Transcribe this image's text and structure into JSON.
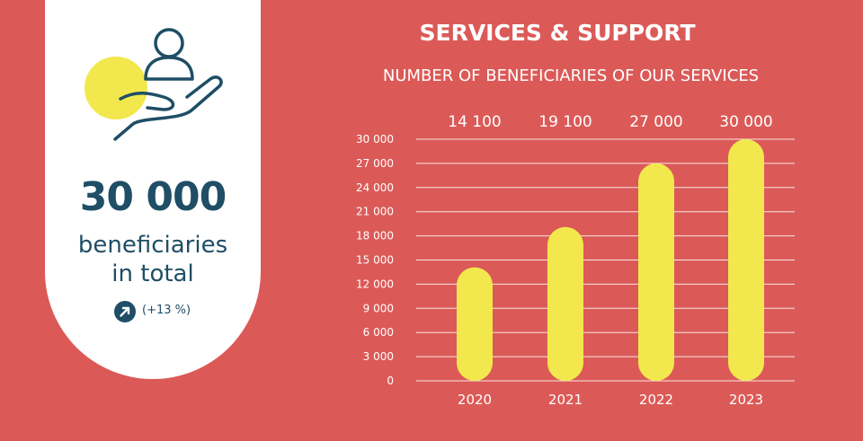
{
  "summary": {
    "value": "30 000",
    "line1": "beneficiaries",
    "line2": "in total",
    "growth": "(+13 %)",
    "icons": [
      "hand-person-icon",
      "arrow-up-right-icon"
    ]
  },
  "header": {
    "title": "SERVICES & SUPPORT"
  },
  "colors": {
    "background": "#db5a57",
    "bar": "#f2e84d",
    "card": "#ffffff",
    "text_dark": "#1f4e66"
  },
  "chart_data": {
    "type": "bar",
    "title": "NUMBER OF BENEFICIARIES OF OUR SERVICES",
    "categories": [
      "2020",
      "2021",
      "2022",
      "2023"
    ],
    "values": [
      14100,
      19100,
      27000,
      30000
    ],
    "value_labels": [
      "14 100",
      "19 100",
      "27 000",
      "30 000"
    ],
    "ylim": [
      0,
      30000
    ],
    "yticks": [
      0,
      3000,
      6000,
      9000,
      12000,
      15000,
      18000,
      21000,
      24000,
      27000,
      30000
    ],
    "ytick_labels": [
      "0",
      "3 000",
      "6 000",
      "9 000",
      "12 000",
      "15 000",
      "18 000",
      "21 000",
      "24 000",
      "27 000",
      "30 000"
    ],
    "grid": true,
    "legend": "none"
  }
}
